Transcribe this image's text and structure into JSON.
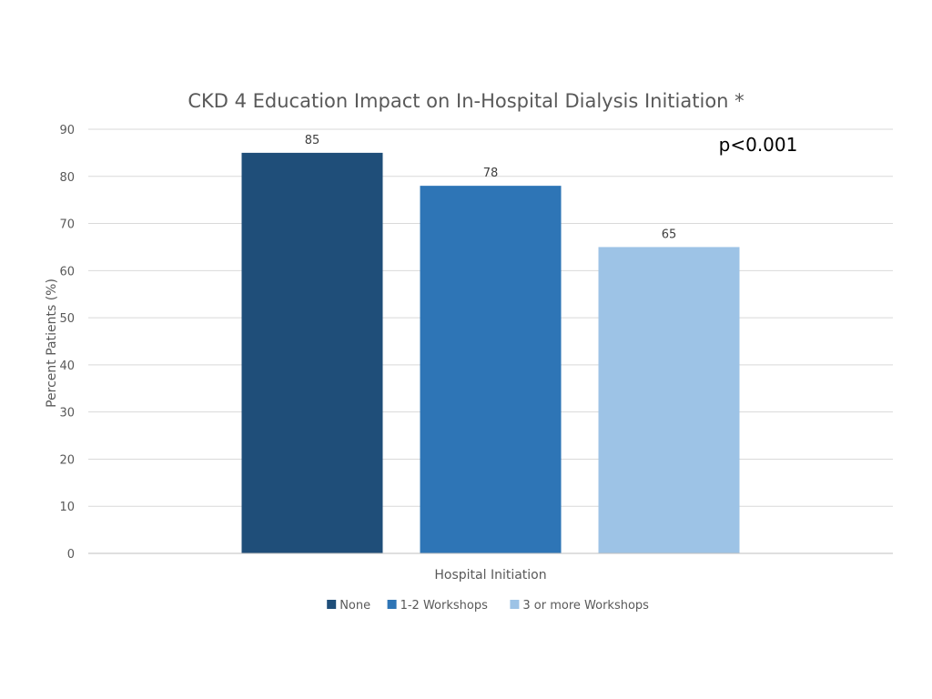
{
  "chart_data": {
    "type": "bar",
    "title": "CKD 4 Education Impact on In-Hospital Dialysis Initiation *",
    "xlabel": "Hospital Initiation",
    "ylabel": "Percent Patients (%)",
    "ylim": [
      0,
      90
    ],
    "yticks": [
      "0",
      "10",
      "20",
      "30",
      "40",
      "50",
      "60",
      "70",
      "80",
      "90"
    ],
    "grid": true,
    "legend_position": "bottom",
    "categories": [
      "Hospital Initiation"
    ],
    "series": [
      {
        "name": "None",
        "values": [
          85
        ],
        "label": "85",
        "color": "#1F4E79"
      },
      {
        "name": "1-2 Workshops",
        "values": [
          78
        ],
        "label": "78",
        "color": "#2E75B6"
      },
      {
        "name": "3 or more Workshops",
        "values": [
          65
        ],
        "label": "65",
        "color": "#9DC3E6"
      }
    ],
    "annotation": "p<0.001"
  }
}
